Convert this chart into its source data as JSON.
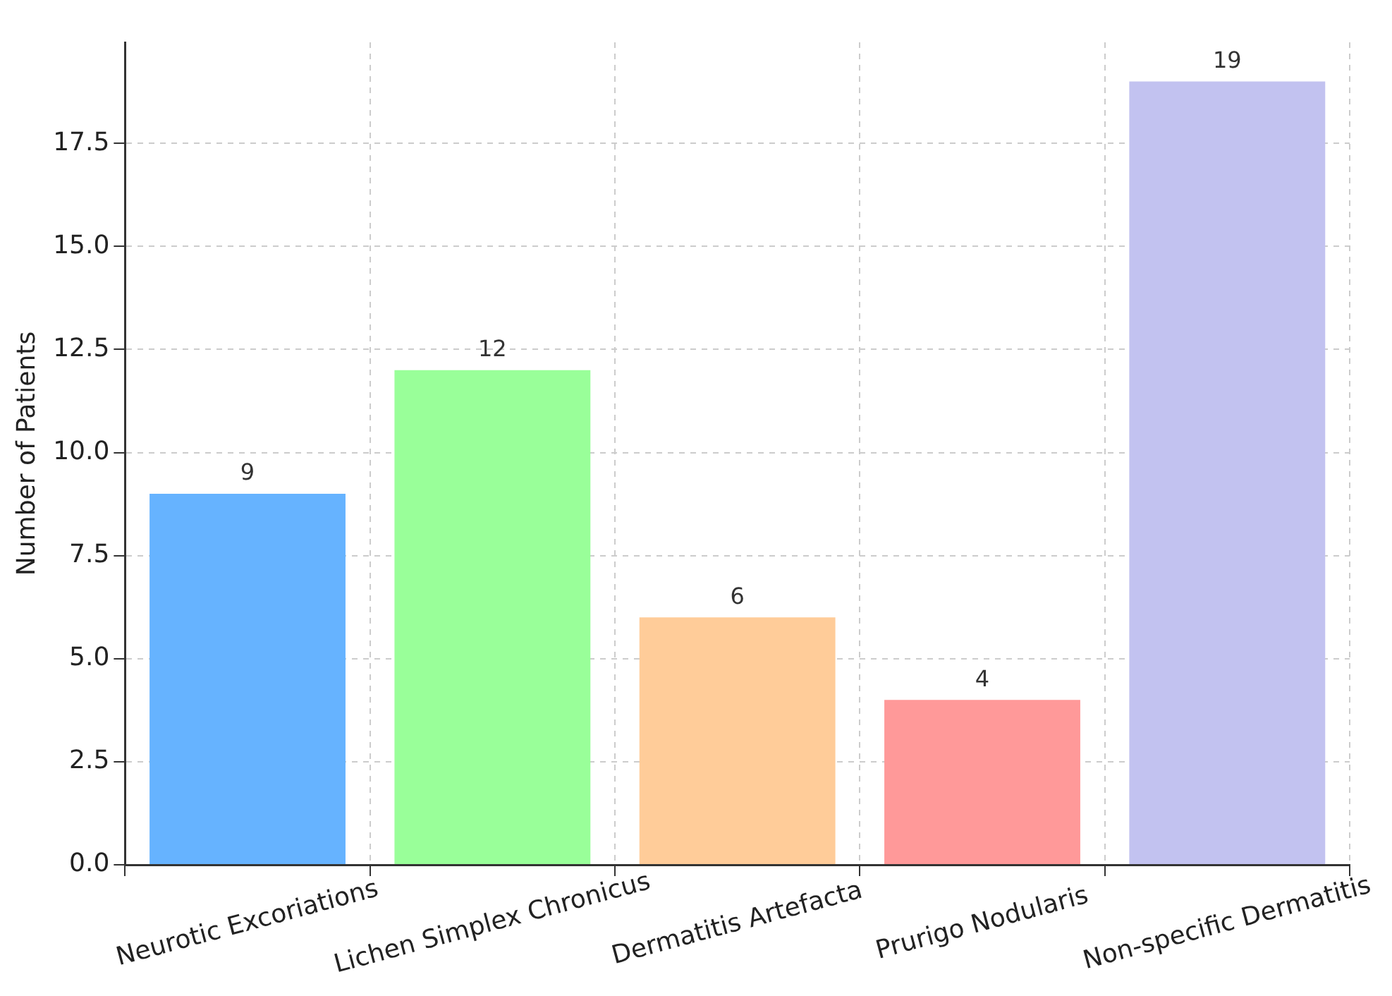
{
  "chart_data": {
    "type": "bar",
    "ylabel": "Number of Patients",
    "categories": [
      "Neurotic Excoriations",
      "Lichen Simplex Chronicus",
      "Dermatitis Artefacta",
      "Prurigo Nodularis",
      "Non-specific Dermatitis"
    ],
    "values": [
      9,
      12,
      6,
      4,
      19
    ],
    "colors": [
      "#66b3ff",
      "#99ff99",
      "#ffcc99",
      "#ff9999",
      "#c2c2f0"
    ],
    "ylim": [
      0,
      19.95
    ],
    "yticks": [
      {
        "value": 0,
        "label": "0.0"
      },
      {
        "value": 2.5,
        "label": "2.5"
      },
      {
        "value": 5,
        "label": "5.0"
      },
      {
        "value": 7.5,
        "label": "7.5"
      },
      {
        "value": 10,
        "label": "10.0"
      },
      {
        "value": 12.5,
        "label": "12.5"
      },
      {
        "value": 15,
        "label": "15.0"
      },
      {
        "value": 17.5,
        "label": "17.5"
      }
    ],
    "grid": true,
    "data_labels": true
  }
}
